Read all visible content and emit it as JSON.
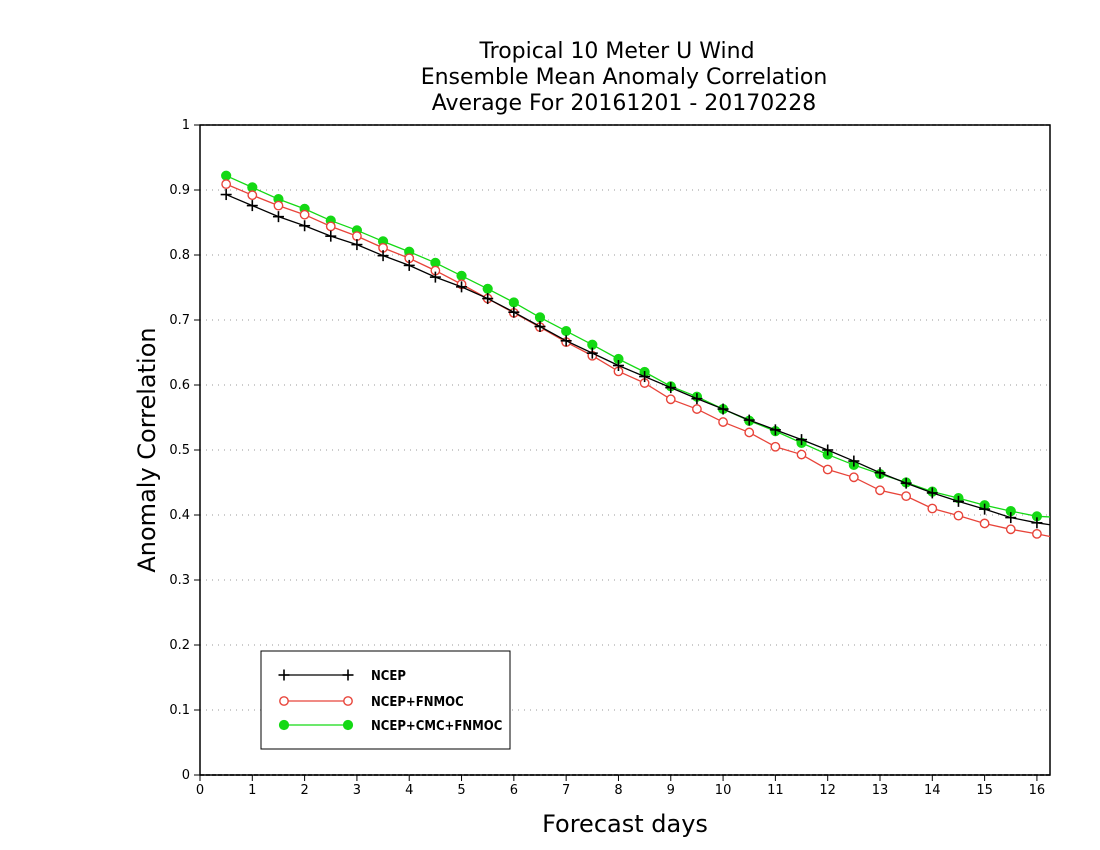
{
  "chart_data": {
    "type": "line",
    "title_lines": [
      "Tropical 10 Meter U Wind",
      "Ensemble Mean Anomaly Correlation",
      "Average For 20161201 - 20170228"
    ],
    "xlabel": "Forecast days",
    "ylabel": "Anomaly Correlation",
    "xlim": [
      0,
      16.25
    ],
    "ylim": [
      0,
      1
    ],
    "xticks": [
      0,
      1,
      2,
      3,
      4,
      5,
      6,
      7,
      8,
      9,
      10,
      11,
      12,
      13,
      14,
      15,
      16
    ],
    "yticks": [
      0,
      0.1,
      0.2,
      0.3,
      0.4,
      0.5,
      0.6,
      0.7,
      0.8,
      0.9,
      1
    ],
    "ytick_labels": [
      "0",
      "0.1",
      "0.2",
      "0.3",
      "0.4",
      "0.5",
      "0.6",
      "0.7",
      "0.8",
      "0.9",
      "1"
    ],
    "grid": "horizontal dotted",
    "legend_position": "bottom-left",
    "x": [
      0.5,
      1.0,
      1.5,
      2.0,
      2.5,
      3.0,
      3.5,
      4.0,
      4.5,
      5.0,
      5.5,
      6.0,
      6.5,
      7.0,
      7.5,
      8.0,
      8.5,
      9.0,
      9.5,
      10.0,
      10.5,
      11.0,
      11.5,
      12.0,
      12.5,
      13.0,
      13.5,
      14.0,
      14.5,
      15.0,
      15.5,
      16.0,
      16.25
    ],
    "series": [
      {
        "name": "NCEP",
        "color": "#000000",
        "marker": "plus",
        "values": [
          0.893,
          0.876,
          0.859,
          0.845,
          0.829,
          0.816,
          0.799,
          0.784,
          0.766,
          0.751,
          0.733,
          0.712,
          0.69,
          0.668,
          0.649,
          0.63,
          0.613,
          0.596,
          0.579,
          0.563,
          0.546,
          0.531,
          0.516,
          0.5,
          0.483,
          0.465,
          0.449,
          0.434,
          0.421,
          0.409,
          0.396,
          0.388,
          0.385
        ]
      },
      {
        "name": "NCEP+FNMOC",
        "color": "#e8443a",
        "marker": "open-circle",
        "values": [
          0.909,
          0.892,
          0.876,
          0.862,
          0.844,
          0.829,
          0.811,
          0.795,
          0.776,
          0.755,
          0.733,
          0.711,
          0.689,
          0.666,
          0.645,
          0.621,
          0.603,
          0.578,
          0.563,
          0.543,
          0.527,
          0.505,
          0.493,
          0.47,
          0.458,
          0.438,
          0.429,
          0.41,
          0.399,
          0.387,
          0.378,
          0.371,
          0.367
        ]
      },
      {
        "name": "NCEP+CMC+FNMOC",
        "color": "#14d914",
        "marker": "filled-circle",
        "values": [
          0.922,
          0.904,
          0.886,
          0.871,
          0.853,
          0.838,
          0.821,
          0.805,
          0.788,
          0.768,
          0.748,
          0.727,
          0.704,
          0.683,
          0.662,
          0.64,
          0.62,
          0.598,
          0.582,
          0.563,
          0.545,
          0.529,
          0.511,
          0.493,
          0.477,
          0.463,
          0.45,
          0.436,
          0.426,
          0.415,
          0.406,
          0.398,
          0.397
        ]
      }
    ]
  }
}
